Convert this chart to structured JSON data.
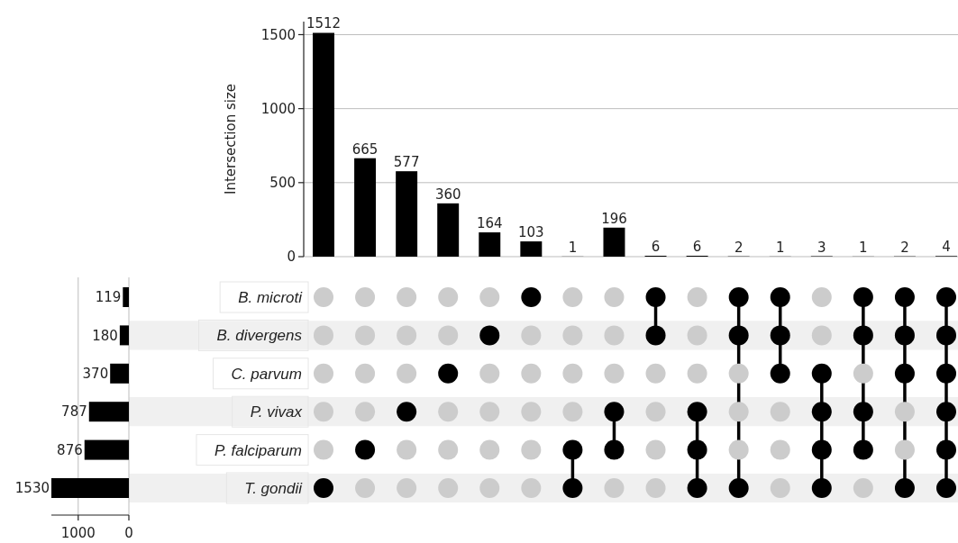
{
  "chart_data": [
    {
      "type": "bar",
      "ylabel": "Intersection size",
      "categories": [
        null,
        null,
        null,
        null,
        null,
        null,
        null,
        null,
        null,
        null,
        null,
        null,
        null,
        null,
        null,
        null
      ],
      "values": [
        1512,
        665,
        577,
        360,
        164,
        103,
        1,
        196,
        6,
        6,
        2,
        1,
        3,
        1,
        2,
        4
      ],
      "color": "#000000",
      "ylim": [
        0,
        1588
      ],
      "yticks": [
        0,
        500,
        1000,
        1500
      ],
      "grid": "y",
      "data_labels": true
    },
    {
      "type": "bar",
      "orientation": "horizontal",
      "categories": [
        null,
        null,
        null,
        null,
        null,
        null
      ],
      "values": [
        119,
        180,
        370,
        787,
        876,
        1530
      ],
      "color": "#000000",
      "xlim": [
        1530,
        0
      ],
      "xticks": [
        1000,
        0
      ],
      "grid": "x",
      "data_labels": true
    },
    {
      "type": "other",
      "annotations": [
        "B. microti",
        "B. divergens",
        "C. parvum",
        "P. vivax",
        "P. falciparum",
        "T. gondii"
      ]
    }
  ]
}
